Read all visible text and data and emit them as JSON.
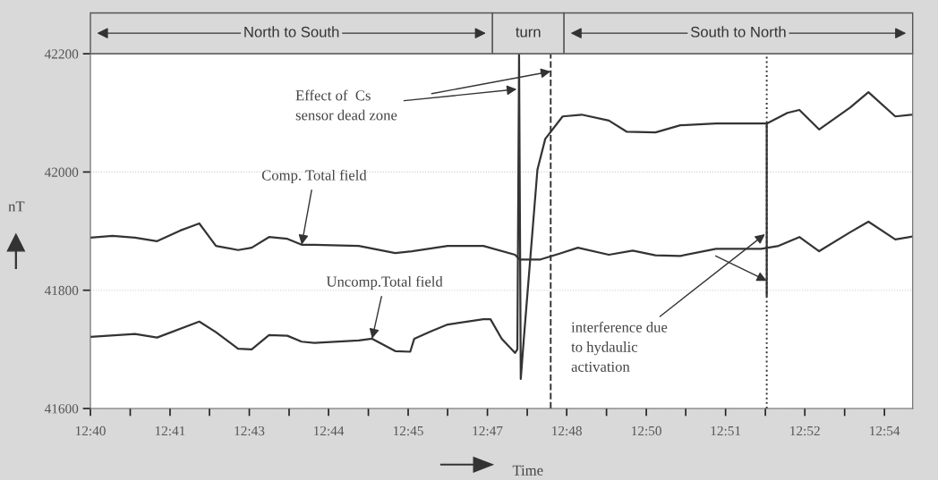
{
  "chart_data": {
    "type": "line",
    "xlabel": "Time",
    "ylabel": "nT",
    "xlim": [
      12.6633,
      12.905
    ],
    "ylim": [
      41600,
      42200
    ],
    "xticks": [
      {
        "value": 12.6633,
        "label": "12:40"
      },
      {
        "value": 12.675,
        "label": null
      },
      {
        "value": 12.6867,
        "label": "12:41"
      },
      {
        "value": 12.6983,
        "label": null
      },
      {
        "value": 12.71,
        "label": "12:43"
      },
      {
        "value": 12.7217,
        "label": null
      },
      {
        "value": 12.7333,
        "label": "12:44"
      },
      {
        "value": 12.745,
        "label": null
      },
      {
        "value": 12.7567,
        "label": "12:45"
      },
      {
        "value": 12.7683,
        "label": null
      },
      {
        "value": 12.78,
        "label": "12:47"
      },
      {
        "value": 12.7917,
        "label": null
      },
      {
        "value": 12.8033,
        "label": "12:48"
      },
      {
        "value": 12.815,
        "label": null
      },
      {
        "value": 12.8267,
        "label": "12:50"
      },
      {
        "value": 12.8383,
        "label": null
      },
      {
        "value": 12.85,
        "label": "12:51"
      },
      {
        "value": 12.8617,
        "label": null
      },
      {
        "value": 12.8733,
        "label": "12:52"
      },
      {
        "value": 12.885,
        "label": null
      },
      {
        "value": 12.8967,
        "label": "12:54"
      }
    ],
    "yticks": [
      41600,
      41800,
      42000,
      42200
    ],
    "grid": "y",
    "legend": false,
    "marker": "none",
    "line_style": "solid",
    "series": [
      {
        "color": "#333333",
        "x": [
          12.6633,
          12.6698,
          12.6764,
          12.6829,
          12.6897,
          12.6953,
          12.7002,
          12.7067,
          12.7107,
          12.7158,
          12.7212,
          12.7254,
          12.7291,
          12.7422,
          12.7529,
          12.7578,
          12.7683,
          12.7788,
          12.7881,
          12.7895,
          12.7956,
          12.8012,
          12.8066,
          12.8157,
          12.8227,
          12.8294,
          12.8367,
          12.8472,
          12.8605,
          12.8656,
          12.8717,
          12.8775,
          12.8866,
          12.892,
          12.8999,
          12.905
        ],
        "values": [
          41889,
          41892,
          41889,
          41883,
          41901,
          41913,
          41875,
          41868,
          41872,
          41890,
          41887,
          41877,
          41877,
          41875,
          41863,
          41866,
          41875,
          41875,
          41860,
          41852,
          41852,
          41862,
          41872,
          41860,
          41867,
          41859,
          41858,
          41870,
          41870,
          41875,
          41890,
          41866,
          41898,
          41916,
          41886,
          41891
        ]
      },
      {
        "color": "#333333",
        "x": [
          12.6633,
          12.6764,
          12.6829,
          12.6953,
          12.7002,
          12.7067,
          12.7107,
          12.7158,
          12.7212,
          12.7254,
          12.7291,
          12.7422,
          12.7461,
          12.7529,
          12.7573,
          12.7585,
          12.7632,
          12.7683,
          12.7788,
          12.7809,
          12.7842,
          12.7881,
          12.7888,
          12.7893,
          12.7898,
          12.7907,
          12.7947,
          12.797,
          12.8021,
          12.8077,
          12.8157,
          12.821,
          12.8294,
          12.8367,
          12.8472,
          12.8581,
          12.8621,
          12.8621,
          12.8621,
          12.8682,
          12.8717,
          12.8775,
          12.8866,
          12.892,
          12.8999,
          12.905
        ],
        "values": [
          41721,
          41726,
          41720,
          41747,
          41729,
          41701,
          41700,
          41724,
          41723,
          41713,
          41711,
          41715,
          41718,
          41697,
          41696,
          41718,
          41730,
          41742,
          41751,
          41751,
          41718,
          41694,
          41700,
          42200,
          41650,
          41718,
          42004,
          42056,
          42094,
          42097,
          42087,
          42068,
          42067,
          42079,
          42082,
          42082,
          42082,
          41790,
          42082,
          42100,
          42105,
          42072,
          42109,
          42135,
          42094,
          42097
        ]
      }
    ],
    "ref_lines": [
      {
        "axis": "x",
        "value": 12.7986,
        "color": "#333333",
        "line_style": "dashed"
      },
      {
        "axis": "x",
        "value": 12.8621,
        "color": "#333333",
        "line_style": "dotted"
      }
    ],
    "annotations": [
      "North to South",
      "turn",
      "South to North",
      {
        "text": "Comp. Total field",
        "x": 12.7254,
        "y": 41877
      },
      {
        "text": "Uncomp.Total field",
        "x": 12.7461,
        "y": 41718
      },
      {
        "text": "Effect of  Cs\nsensor dead zone",
        "x": 12.7886,
        "y": 42140
      },
      {
        "text": "interference due\nto hydaulic\nactivation",
        "x": 12.8616,
        "y": 41895
      }
    ]
  }
}
